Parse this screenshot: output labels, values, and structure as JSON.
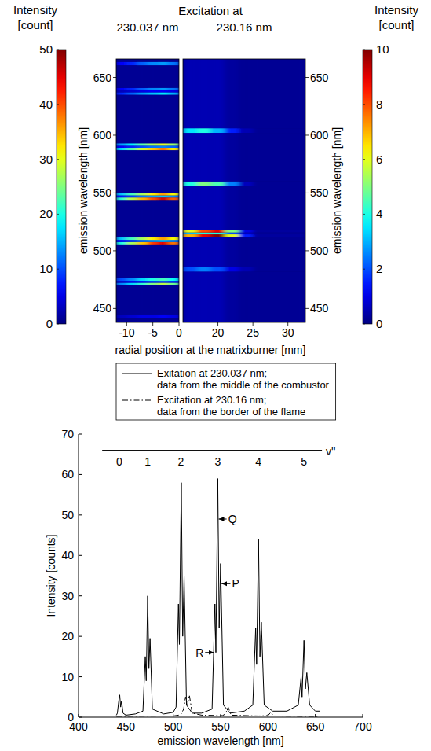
{
  "header": {
    "title": "Excitation at",
    "xlabel": "radial position at the matrixburner [mm]"
  },
  "chart_data": [
    {
      "type": "heatmap",
      "subtitle": "230.037 nm",
      "ylabel": "emission wavelength [nm]",
      "xlim": [
        -12,
        0
      ],
      "ylim": [
        438,
        666
      ],
      "xticks": [
        -10,
        -5,
        0
      ],
      "yticks": [
        450,
        500,
        550,
        600,
        650
      ],
      "x_edges": [
        -12,
        -10,
        -8,
        -6,
        -4,
        -2,
        0
      ],
      "y_edges": [
        438,
        441.5,
        445,
        470.5,
        472.4,
        474,
        476.5,
        505.5,
        507.6,
        509.4,
        511.5,
        544,
        546.1,
        547.9,
        550,
        587,
        589.1,
        590.9,
        593,
        635,
        637.1,
        638.9,
        641,
        660.5,
        663.5,
        666
      ],
      "cells": [
        [
          1,
          1,
          1,
          1,
          1,
          1
        ],
        [
          3,
          4,
          5,
          5,
          6,
          5
        ],
        [
          1,
          1,
          1,
          1,
          1,
          1
        ],
        [
          13,
          17,
          21,
          25,
          28,
          24
        ],
        [
          4,
          6,
          7,
          9,
          10,
          8
        ],
        [
          10,
          13,
          17,
          20,
          22,
          19
        ],
        [
          1,
          1,
          1,
          1,
          1,
          1
        ],
        [
          20,
          27,
          34,
          41,
          45,
          38
        ],
        [
          7,
          9,
          12,
          14,
          16,
          13
        ],
        [
          16,
          22,
          27,
          32,
          36,
          31
        ],
        [
          1,
          1,
          1,
          1,
          1,
          1
        ],
        [
          21,
          28,
          35,
          40,
          46,
          39
        ],
        [
          7,
          9,
          12,
          14,
          16,
          13
        ],
        [
          16,
          22,
          27,
          32,
          36,
          31
        ],
        [
          1,
          1,
          1,
          1,
          1,
          1
        ],
        [
          17,
          23,
          29,
          34,
          38,
          32
        ],
        [
          6,
          8,
          10,
          12,
          13,
          11
        ],
        [
          14,
          18,
          23,
          27,
          30,
          26
        ],
        [
          1,
          1,
          1,
          1,
          1,
          1
        ],
        [
          8,
          11,
          14,
          16,
          18,
          15
        ],
        [
          3,
          4,
          5,
          6,
          6,
          5
        ],
        [
          6,
          8,
          11,
          13,
          14,
          12
        ],
        [
          1,
          1,
          1,
          1,
          1,
          1
        ],
        [
          6,
          8,
          11,
          13,
          14,
          12
        ],
        [
          1,
          1,
          1,
          1,
          1,
          1
        ]
      ],
      "colorbar": {
        "label": "Intensity [count]",
        "range": [
          0,
          50
        ],
        "ticks": [
          0,
          10,
          20,
          30,
          40,
          50
        ]
      }
    },
    {
      "type": "heatmap",
      "subtitle": "230.16 nm",
      "ylabel": "emission wavelength [nm]",
      "xlim": [
        15,
        32.5
      ],
      "ylim": [
        438,
        666
      ],
      "xticks": [
        20,
        25,
        30
      ],
      "yticks": [
        450,
        500,
        550,
        600,
        650
      ],
      "x_edges": [
        15,
        17,
        19,
        21,
        23,
        25,
        32.5
      ],
      "y_edges": [
        438,
        482,
        486,
        512,
        514.2,
        515.8,
        518,
        556,
        560,
        602,
        606,
        666
      ],
      "cells": [
        [
          0.5,
          0.5,
          0.5,
          0.3,
          0.2,
          0.2
        ],
        [
          2,
          2.5,
          2,
          1,
          0.5,
          0.2
        ],
        [
          0.5,
          0.5,
          0.5,
          0.3,
          0.2,
          0.2
        ],
        [
          7,
          9,
          10,
          6,
          1.5,
          0.3
        ],
        [
          3,
          4,
          4,
          2,
          0.6,
          0.2
        ],
        [
          6,
          8,
          9,
          5,
          1,
          0.3
        ],
        [
          0.5,
          0.5,
          0.5,
          0.3,
          0.2,
          0.2
        ],
        [
          4,
          5,
          4.5,
          2.5,
          0.6,
          0.2
        ],
        [
          0.5,
          0.5,
          0.5,
          0.3,
          0.2,
          0.2
        ],
        [
          3.5,
          4,
          3,
          1.5,
          0.5,
          0.2
        ],
        [
          0.5,
          0.5,
          0.5,
          0.3,
          0.2,
          0.2
        ]
      ],
      "colorbar": {
        "label": "Intensity [count]",
        "range": [
          0,
          10
        ],
        "ticks": [
          0,
          2,
          4,
          6,
          8,
          10
        ]
      }
    },
    {
      "type": "line",
      "xlabel": "emission wavelength [nm]",
      "ylabel": "Intensity [counts]",
      "xlim": [
        400,
        700
      ],
      "ylim": [
        0,
        70
      ],
      "xticks": [
        400,
        450,
        500,
        550,
        600,
        650,
        700
      ],
      "yticks": [
        0,
        10,
        20,
        30,
        40,
        50,
        60,
        70
      ],
      "legend": "top",
      "series": [
        {
          "name": "Exitation at 230.037 nm; data from the middle of the combustor",
          "color": "#000000",
          "line_style": "solid",
          "x": [
            440,
            441,
            442.5,
            443.5,
            444.5,
            445.5,
            447,
            450,
            460,
            468,
            470.5,
            471.5,
            473,
            474.3,
            475.5,
            478,
            490,
            500,
            503,
            505.5,
            506.5,
            508.5,
            510,
            511.5,
            514,
            520,
            530,
            541,
            544,
            545,
            547,
            548.5,
            550,
            553,
            560,
            575,
            584,
            587,
            588,
            590,
            591.5,
            593,
            596,
            605,
            620,
            632,
            635,
            636,
            638,
            639.5,
            641,
            644,
            650,
            655
          ],
          "values": [
            0.5,
            1,
            4,
            5.5,
            2.5,
            4,
            1,
            0.5,
            0.8,
            1.5,
            15,
            9,
            30,
            12,
            19.5,
            2,
            0.8,
            1.2,
            2.5,
            28,
            18,
            58,
            20,
            35,
            3,
            1,
            1,
            2,
            28,
            16,
            59,
            22,
            38,
            3,
            1,
            1.5,
            3,
            22,
            13,
            44,
            15,
            23.5,
            3,
            1.5,
            1.5,
            3,
            10,
            5,
            19,
            7,
            11,
            3,
            1.5,
            1.5
          ]
        },
        {
          "name": "Excitation at 230.16 nm; data from the border of the flame",
          "color": "#000000",
          "line_style": "dashdot",
          "x": [
            440,
            500,
            508,
            511,
            513,
            515,
            517,
            520,
            530,
            552,
            555,
            558,
            561,
            590,
            600,
            603,
            606,
            640,
            655
          ],
          "values": [
            0.2,
            0.3,
            0.6,
            2,
            5,
            3,
            5.5,
            1,
            0.5,
            0.4,
            0.8,
            2.5,
            0.5,
            0.3,
            0.4,
            1.2,
            0.3,
            0.2,
            0.2
          ]
        }
      ],
      "annotations": [
        {
          "text": "Q",
          "x": 548,
          "y": 49,
          "text_x": 558,
          "text_y": 49
        },
        {
          "text": "P",
          "x": 551,
          "y": 33,
          "text_x": 562,
          "text_y": 33
        },
        {
          "text": "R",
          "x": 543,
          "y": 16,
          "text_x": 532,
          "text_y": 16
        }
      ],
      "v_axis": {
        "label": "v''",
        "y": 66,
        "xlim": [
          425,
          657
        ],
        "ticks": [
          {
            "value": 443,
            "label": "0"
          },
          {
            "value": 473,
            "label": "1"
          },
          {
            "value": 508,
            "label": "2"
          },
          {
            "value": 547,
            "label": "3"
          },
          {
            "value": 590,
            "label": "4"
          },
          {
            "value": 638,
            "label": "5"
          }
        ]
      }
    }
  ]
}
